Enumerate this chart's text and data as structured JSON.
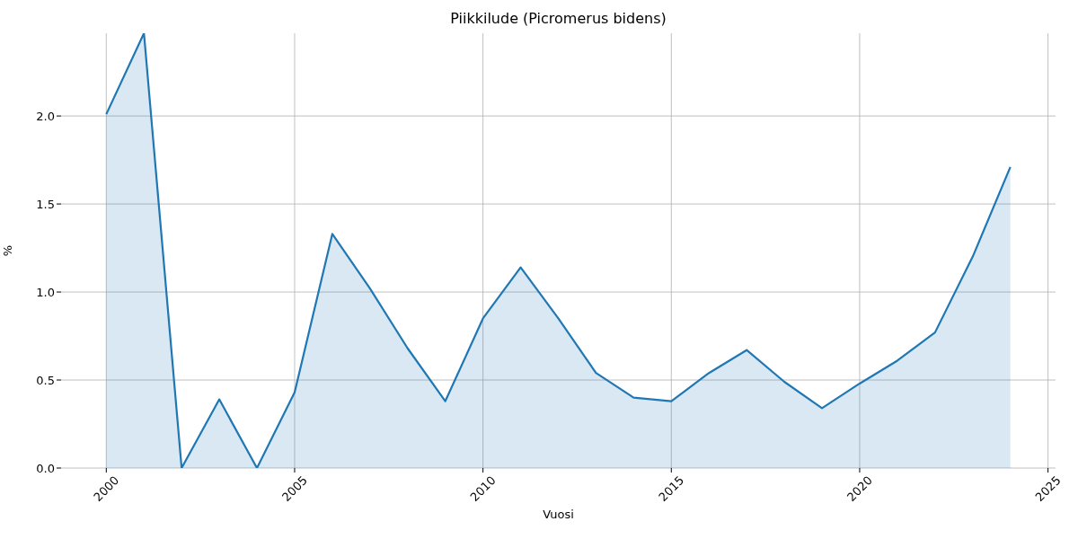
{
  "chart_data": {
    "type": "area",
    "title": "Piikkilude (Picromerus bidens)",
    "xlabel": "Vuosi",
    "ylabel": "%",
    "x": [
      2000,
      2001,
      2002,
      2003,
      2004,
      2005,
      2006,
      2007,
      2008,
      2009,
      2010,
      2011,
      2012,
      2013,
      2014,
      2015,
      2016,
      2017,
      2018,
      2019,
      2020,
      2021,
      2022,
      2023,
      2024
    ],
    "series": [
      {
        "color": "#1f77b4",
        "values": [
          2.01,
          2.47,
          0,
          0.39,
          0,
          0.43,
          1.33,
          1.02,
          0.68,
          0.38,
          0.85,
          1.14,
          0.85,
          0.54,
          0.4,
          0.38,
          0.54,
          0.67,
          0.49,
          0.34,
          0.48,
          0.61,
          0.77,
          1.2,
          1.71
        ]
      }
    ],
    "xlim": [
      1998.8,
      2025.2
    ],
    "ylim": [
      0,
      2.47
    ],
    "xticks": [
      2000,
      2005,
      2010,
      2015,
      2020,
      2025
    ],
    "yticks": [
      {
        "value": 0,
        "label": "0.0"
      },
      0.5,
      {
        "value": 1,
        "label": "1.0"
      },
      1.5,
      {
        "value": 2,
        "label": "2.0"
      }
    ],
    "grid": true
  }
}
